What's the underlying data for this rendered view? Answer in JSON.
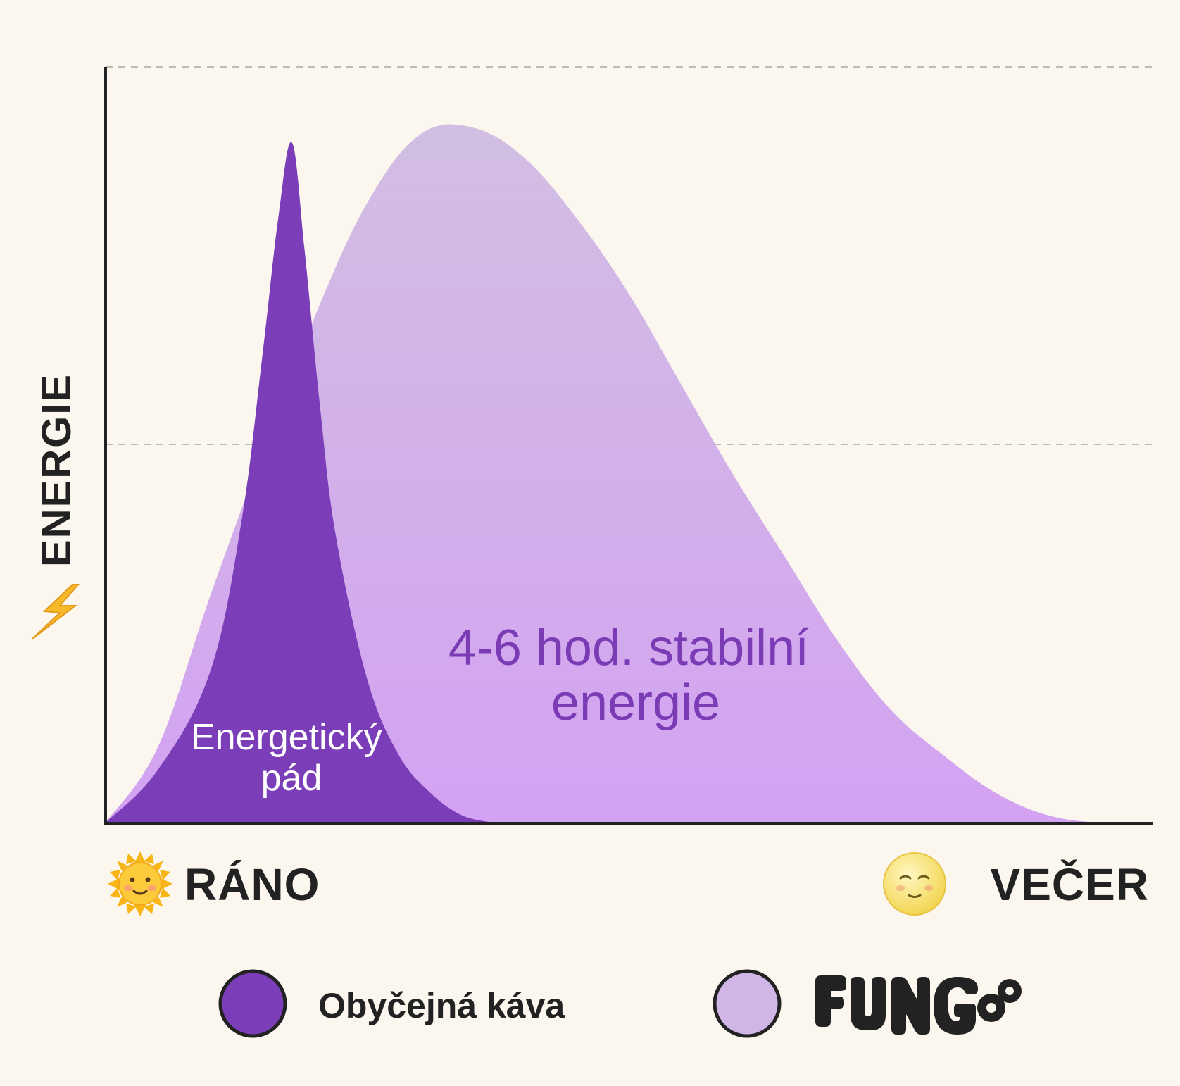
{
  "chart_data": {
    "type": "area",
    "ylabel": "ENERGIE",
    "x_start_label": "RÁNO",
    "x_end_label": "VEČER",
    "xlim": [
      0,
      100
    ],
    "ylim": [
      0,
      100
    ],
    "grid": "horizontal dashed",
    "series": [
      {
        "name": "FUNGEE",
        "color": "#D0B6E6",
        "x": [
          0,
          5,
          10,
          15,
          20,
          25,
          30,
          35,
          40,
          45,
          50,
          55,
          60,
          65,
          70,
          75,
          80,
          85,
          90,
          95,
          100
        ],
        "values": [
          0,
          10,
          30,
          49,
          67,
          82,
          91,
          92,
          88,
          80,
          70,
          58,
          46,
          35,
          24,
          15,
          9,
          4,
          1,
          0,
          0
        ]
      },
      {
        "name": "Obyčejná káva",
        "color": "#7B3EB8",
        "x": [
          0,
          5,
          10,
          13,
          15,
          16.5,
          17.8,
          19,
          20.5,
          22,
          25,
          28,
          31,
          34,
          37
        ],
        "values": [
          0,
          7,
          20,
          40,
          62,
          80,
          90,
          76,
          55,
          38,
          19,
          9,
          4,
          1,
          0
        ]
      }
    ],
    "annotations": [
      {
        "lines": [
          "Energetický",
          "pád"
        ],
        "x": 17.8,
        "y": 12
      },
      {
        "lines": [
          "4-6 hod. stabilní",
          "energie"
        ],
        "x": 50,
        "y": 22
      }
    ]
  },
  "icons": {
    "ylabel_icon": "lightning-icon",
    "start_icon": "sun-face-icon",
    "end_icon": "full-moon-face-icon"
  },
  "legend": [
    {
      "label": "Obyčejná káva",
      "color": "#7B3EB8"
    },
    {
      "label": "FUNGEE",
      "color": "#D0B6E6"
    }
  ]
}
